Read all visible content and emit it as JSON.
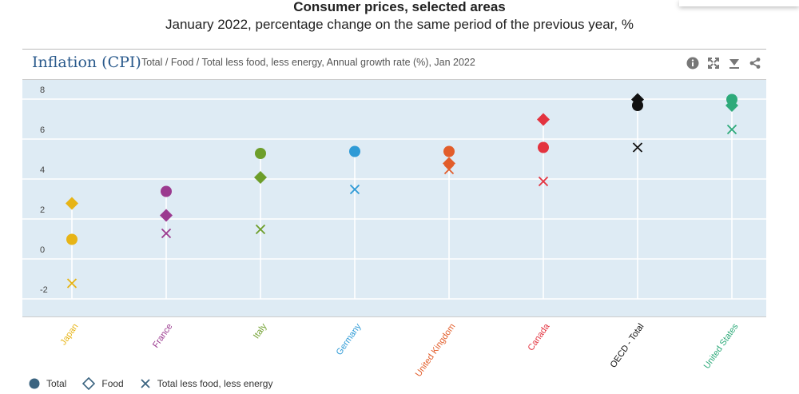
{
  "header": {
    "title": "Consumer prices, selected areas",
    "subtitle": "January 2022, percentage change on the same period of the previous year, %"
  },
  "panel": {
    "title": "Inflation (CPI)",
    "subtitle": "Total / Food / Total less food, less energy, Annual growth rate (%), Jan 2022"
  },
  "toolbar": [
    "info-icon",
    "expand-icon",
    "download-icon",
    "share-icon"
  ],
  "legend": [
    {
      "label": "Total",
      "marker": "circle"
    },
    {
      "label": "Food",
      "marker": "diamond"
    },
    {
      "label": "Total less food, less energy",
      "marker": "cross"
    }
  ],
  "chart_data": {
    "type": "scatter",
    "title": "Inflation (CPI)",
    "xlabel": "",
    "ylabel": "",
    "ylim": [
      -2.6,
      8
    ],
    "yticks": [
      -2,
      0,
      2,
      4,
      6,
      8
    ],
    "grid": true,
    "legend_position": "bottom-left",
    "plot_background": "#deebf4",
    "categories": [
      "Japan",
      "France",
      "Italy",
      "Germany",
      "United Kingdom",
      "Canada",
      "OECD - Total",
      "United States"
    ],
    "category_colors": [
      "#e7b416",
      "#9b3a8f",
      "#6d9e2a",
      "#2d9ad6",
      "#e25d2a",
      "#e3333f",
      "#111111",
      "#2eaa7a"
    ],
    "series": [
      {
        "name": "Total",
        "values": [
          0.5,
          2.9,
          4.8,
          4.9,
          4.9,
          5.1,
          7.2,
          7.5
        ]
      },
      {
        "name": "Food",
        "values": [
          2.3,
          1.7,
          3.6,
          null,
          4.3,
          6.5,
          7.5,
          7.2
        ]
      },
      {
        "name": "Total less food, less energy",
        "values": [
          -1.7,
          0.8,
          1.0,
          3.0,
          4.0,
          3.4,
          5.1,
          6.0
        ]
      }
    ]
  }
}
